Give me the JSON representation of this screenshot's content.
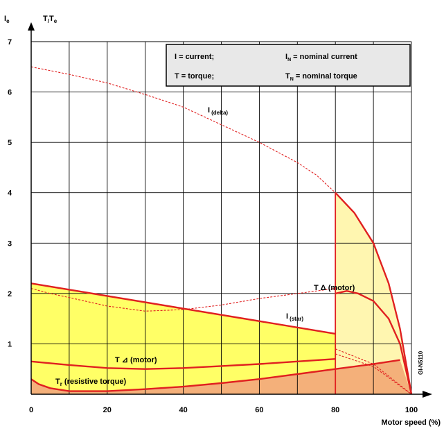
{
  "chart_data": {
    "type": "line",
    "y_axis_label": {
      "main": "I",
      "main_sub": "e",
      "over": "I",
      "second": "T",
      "second_over": "T",
      "second_sub": "e"
    },
    "x_axis_label": "Motor speed (%)",
    "x_ticks": [
      "0",
      "20",
      "40",
      "60",
      "80",
      "100"
    ],
    "y_ticks": [
      "1",
      "2",
      "3",
      "4",
      "5",
      "6",
      "7"
    ],
    "xlim": [
      0,
      100
    ],
    "ylim": [
      0,
      7
    ],
    "grid": true,
    "legend_position": "top-right",
    "legend": {
      "row1_left": "I  = current;",
      "row1_right_sym": "I",
      "row1_right_sub": "N",
      "row1_right_text": " = nominal current",
      "row2_left": "T  = torque;",
      "row2_right_sym": "T",
      "row2_right_sub": "N",
      "row2_right_text": " = nominal torque"
    },
    "series": [
      {
        "id": "i_delta",
        "label_main": "I",
        "label_sub": "(delta)",
        "style": "dashed",
        "x": [
          0,
          10,
          20,
          30,
          40,
          50,
          60,
          70,
          75,
          80
        ],
        "y": [
          6.5,
          6.35,
          6.18,
          5.95,
          5.7,
          5.35,
          5.0,
          4.6,
          4.35,
          4.0
        ]
      },
      {
        "id": "i_star",
        "label_main": "I",
        "label_sub": "(star)",
        "style": "dashed",
        "x": [
          0,
          5,
          10,
          20,
          30,
          40,
          50,
          60,
          70,
          80
        ],
        "y": [
          2.1,
          2.0,
          1.92,
          1.75,
          1.65,
          1.68,
          1.77,
          1.9,
          2.0,
          2.1
        ]
      },
      {
        "id": "t_delta_motor",
        "label": "T Δ (motor)",
        "style": "solid",
        "x": [
          80,
          83,
          86,
          90,
          94,
          97,
          100
        ],
        "y": [
          2.0,
          2.05,
          2.0,
          1.85,
          1.5,
          1.0,
          0.0
        ]
      },
      {
        "id": "t_star_motor",
        "label": "T ⊿ (motor)",
        "style": "solid",
        "x": [
          0,
          10,
          20,
          30,
          40,
          50,
          60,
          70,
          80
        ],
        "y": [
          0.65,
          0.58,
          0.52,
          0.5,
          0.52,
          0.56,
          0.6,
          0.65,
          0.7
        ]
      },
      {
        "id": "t_resistive",
        "label": "T",
        "label_sub": "r",
        "label_rest": " (resistive torque)",
        "style": "solid",
        "x": [
          0,
          2,
          5,
          10,
          20,
          30,
          40,
          50,
          60,
          70,
          80,
          90,
          97
        ],
        "y": [
          0.3,
          0.2,
          0.12,
          0.06,
          0.06,
          0.1,
          0.15,
          0.22,
          0.3,
          0.4,
          0.5,
          0.6,
          0.68
        ]
      },
      {
        "id": "upper_envelope",
        "style": "solid",
        "x": [
          0,
          80
        ],
        "y": [
          2.2,
          1.2
        ]
      },
      {
        "id": "delta_envelope",
        "style": "solid",
        "x": [
          80,
          85,
          90,
          94,
          97,
          100
        ],
        "y": [
          4.0,
          3.6,
          3.0,
          2.2,
          1.3,
          0.0
        ]
      },
      {
        "id": "i_star_tail",
        "style": "dashed",
        "x": [
          80,
          90,
          100
        ],
        "y": [
          0.9,
          0.6,
          0.0
        ]
      },
      {
        "id": "i_delta_tail",
        "style": "dashed",
        "x": [
          80,
          90,
          100
        ],
        "y": [
          0.8,
          0.55,
          0.0
        ]
      }
    ],
    "side_code": "GI-N5110"
  }
}
